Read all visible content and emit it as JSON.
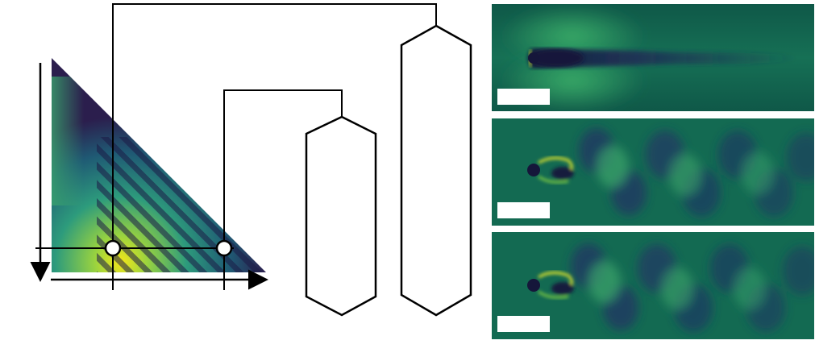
{
  "figure": {
    "colors": {
      "background": "#ffffff",
      "line": "#000000",
      "map_dark": "#2b1e4d",
      "map_mid": "#1f6e6a",
      "map_bright": "#f2e51a",
      "flow_background": "#0e5a4a",
      "flow_wake_dark": "#222b55",
      "flow_highlight": "#e9ea2a"
    },
    "left_map": {
      "icon": "triangular-parameter-map",
      "axes": [
        "vertical-axis-arrow-down",
        "horizontal-axis-arrow-right"
      ],
      "markers": [
        "marker-1",
        "marker-2"
      ]
    },
    "vessels": [
      "tall-vessel",
      "short-vessel"
    ],
    "flow_panels": [
      {
        "state": "steady-wake",
        "has_scale_bar": true
      },
      {
        "state": "vortex-street",
        "has_scale_bar": true
      },
      {
        "state": "vortex-street",
        "has_scale_bar": true
      }
    ]
  }
}
